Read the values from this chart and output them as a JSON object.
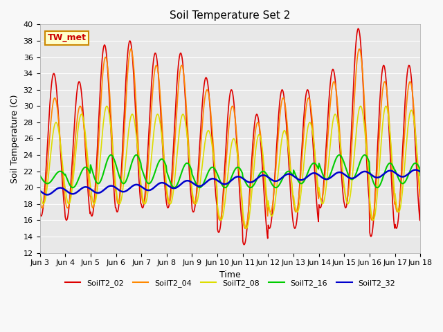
{
  "title": "Soil Temperature Set 2",
  "xlabel": "Time",
  "ylabel": "Soil Temperature (C)",
  "ylim": [
    12,
    40
  ],
  "xlim": [
    0,
    15
  ],
  "annotation": "TW_met",
  "fig_facecolor": "#f8f8f8",
  "ax_facecolor": "#e8e8e8",
  "grid_color": "#ffffff",
  "series_names": [
    "SoilT2_02",
    "SoilT2_04",
    "SoilT2_08",
    "SoilT2_16",
    "SoilT2_32"
  ],
  "series_colors": [
    "#dd0000",
    "#ff8800",
    "#dddd00",
    "#00cc00",
    "#0000cc"
  ],
  "series_linewidths": [
    1.2,
    1.2,
    1.2,
    1.5,
    1.8
  ],
  "xtick_labels": [
    "Jun 3",
    "Jun 4",
    "Jun 5",
    "Jun 6",
    "Jun 7",
    "Jun 8",
    "Jun 9",
    "Jun 10",
    "Jun 11",
    "Jun 12",
    "Jun 13",
    "Jun 14",
    "Jun 15",
    "Jun 16",
    "Jun 17",
    "Jun 18"
  ],
  "ytick_values": [
    12,
    14,
    16,
    18,
    20,
    22,
    24,
    26,
    28,
    30,
    32,
    34,
    36,
    38,
    40
  ],
  "title_fontsize": 11,
  "label_fontsize": 9,
  "tick_fontsize": 8,
  "legend_fontsize": 8
}
